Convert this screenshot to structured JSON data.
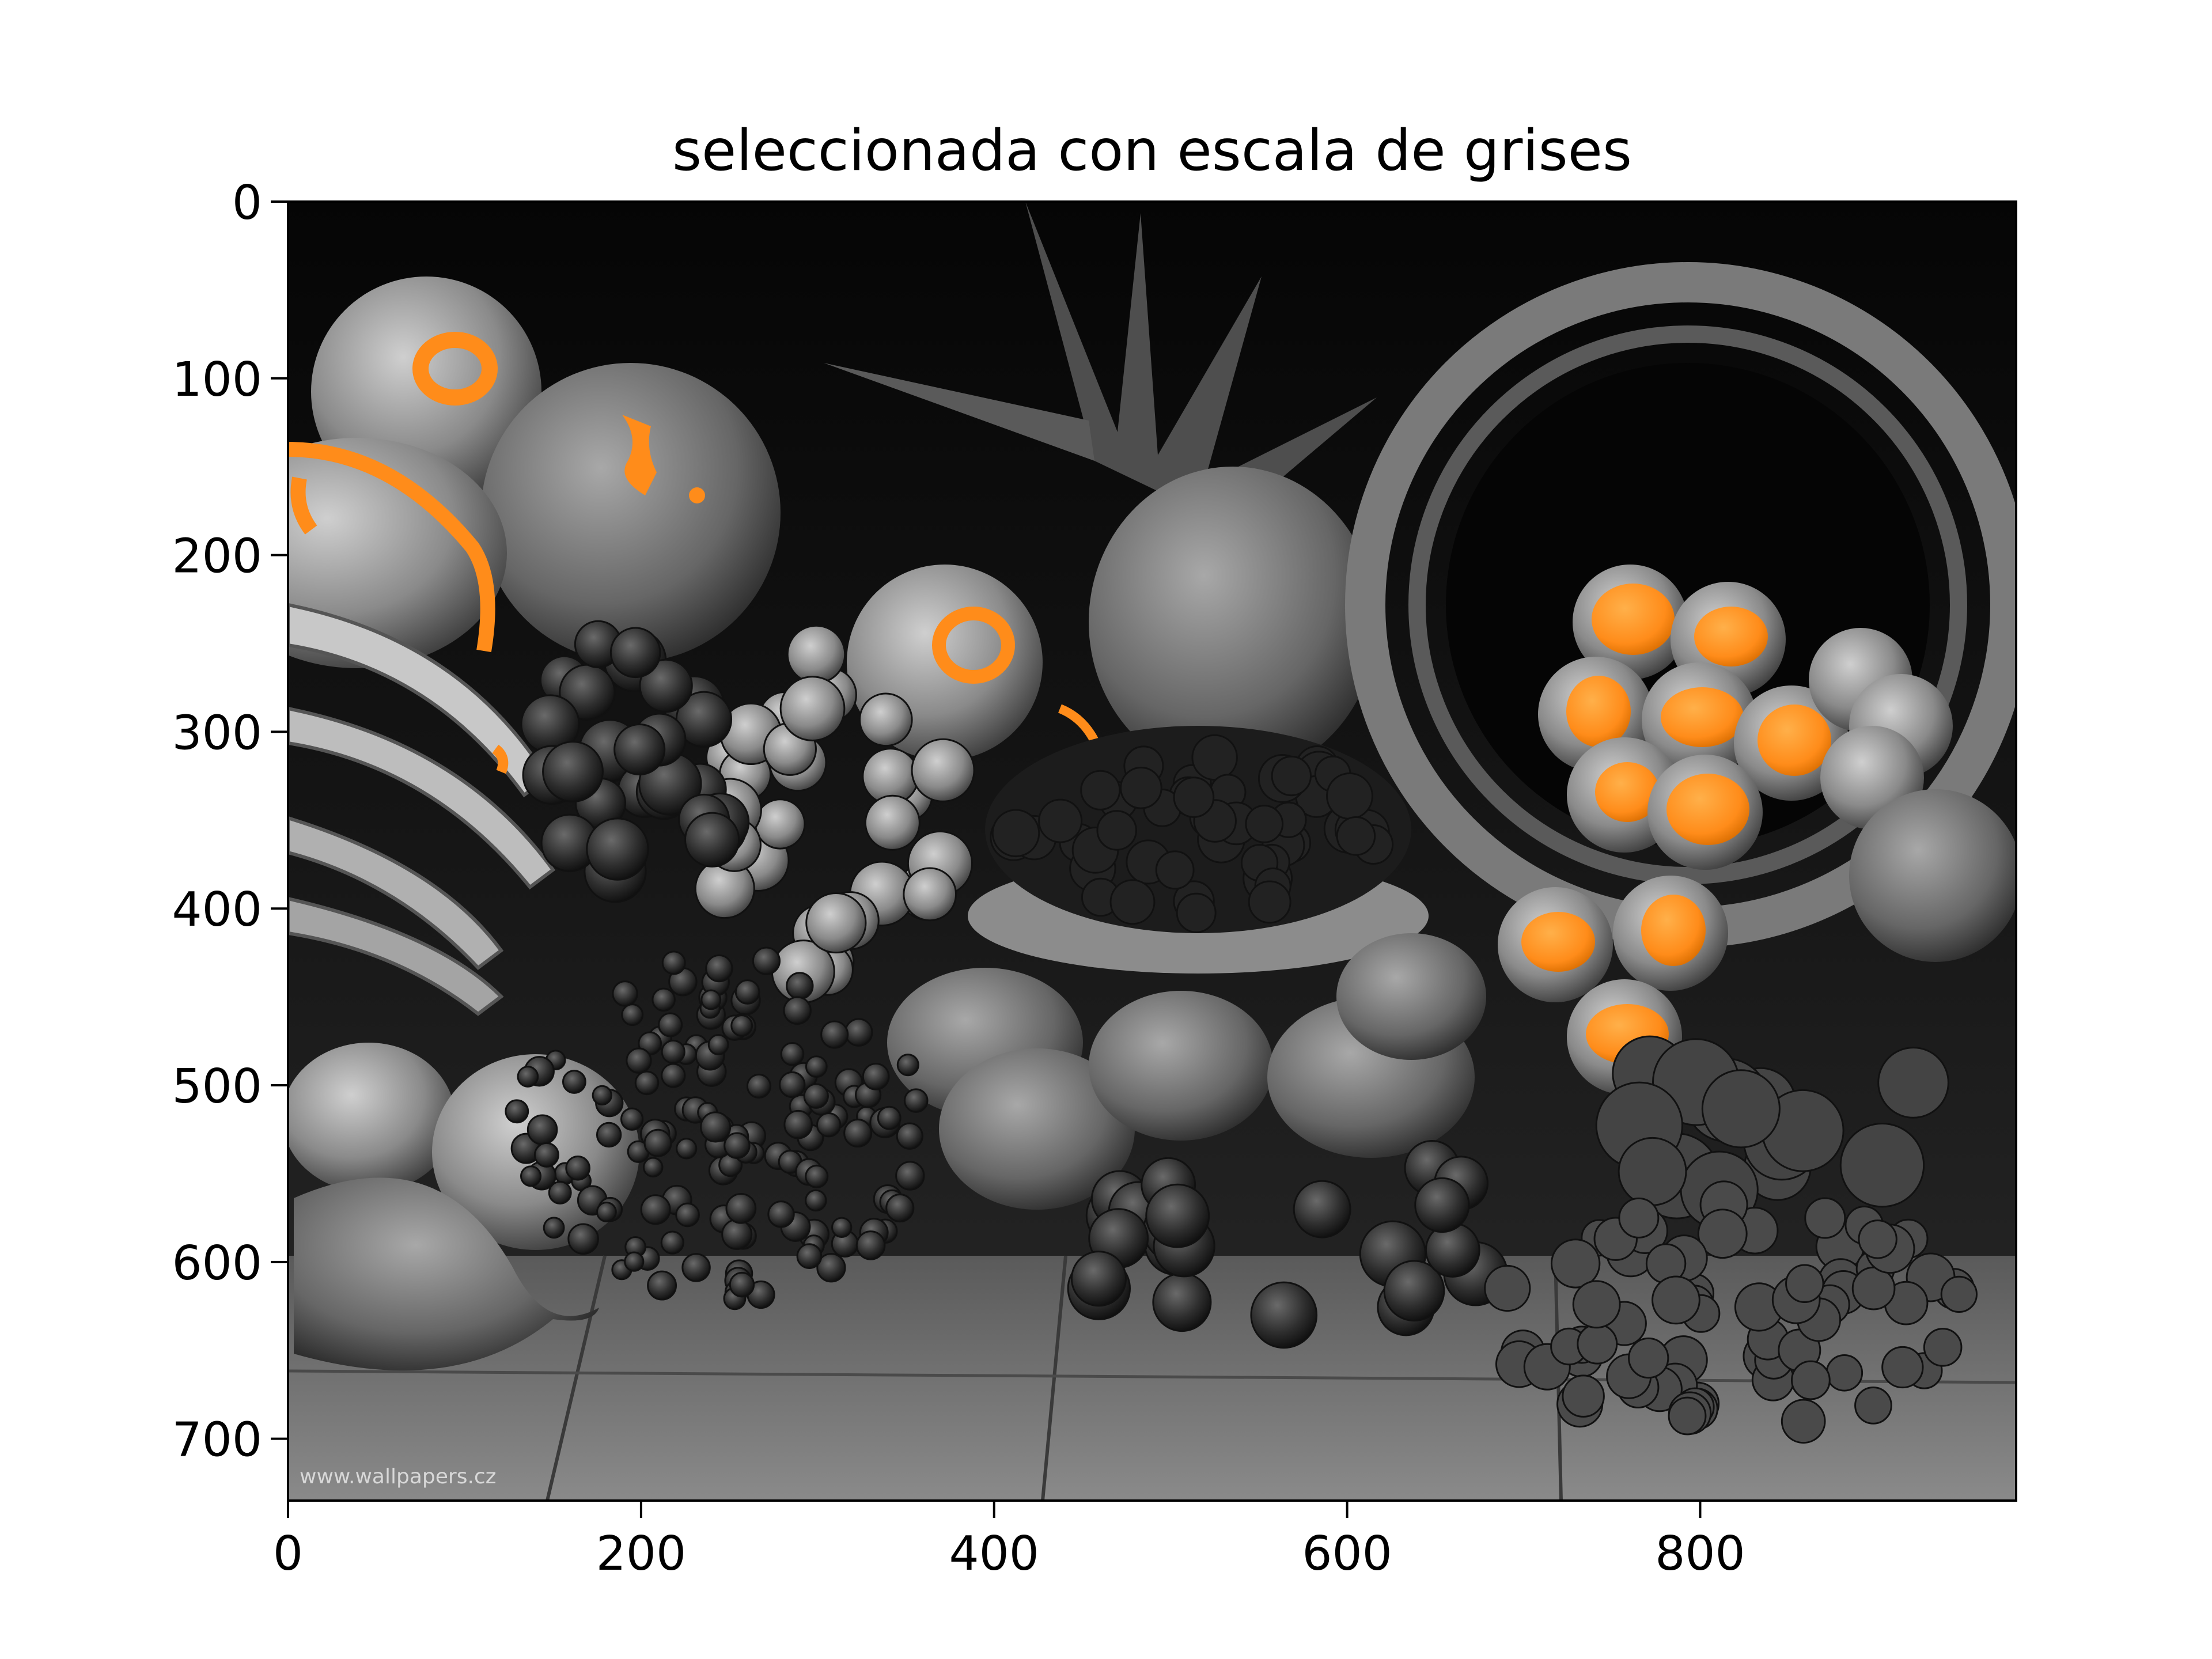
{
  "figure": {
    "title": "seleccionada con escala de grises",
    "watermark": "www.wallpapers.cz",
    "highlight_color": "#ff8c1a",
    "background_color": "#ffffff"
  },
  "axes": {
    "x_ticks": [
      "0",
      "200",
      "400",
      "600",
      "800"
    ],
    "y_ticks": [
      "0",
      "100",
      "200",
      "300",
      "400",
      "500",
      "600",
      "700"
    ],
    "x_tick_values": [
      0,
      200,
      400,
      600,
      800
    ],
    "y_tick_values": [
      0,
      100,
      200,
      300,
      400,
      500,
      600,
      700
    ],
    "x_range": [
      0,
      979
    ],
    "y_range": [
      0,
      735
    ],
    "y_inverted": true
  },
  "image": {
    "description_icon": "grayscale-fruit-still-life-image",
    "highlighted_regions": [
      "oranges",
      "apricots",
      "melon spots",
      "pumpkin rind"
    ]
  }
}
